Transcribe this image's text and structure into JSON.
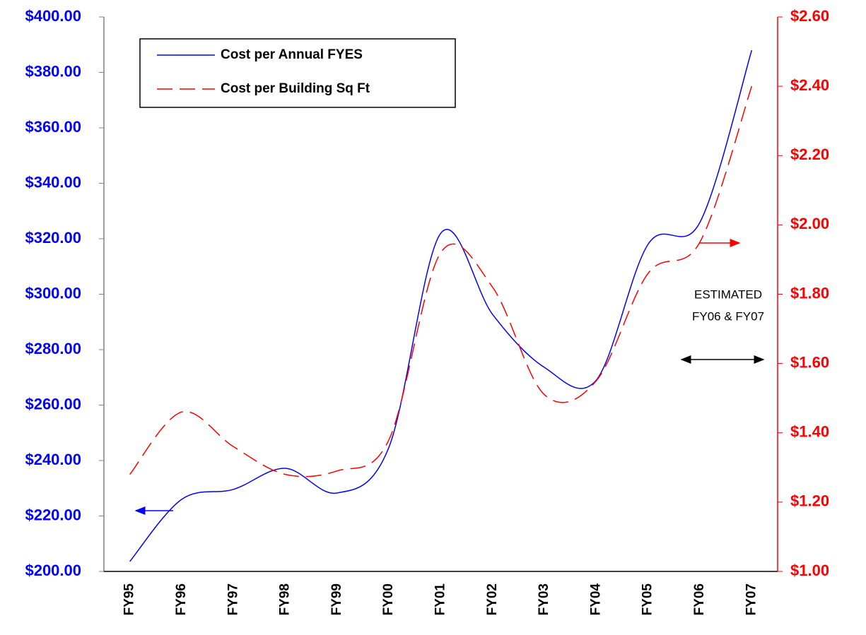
{
  "chart_data": {
    "type": "line",
    "categories": [
      "FY95",
      "FY96",
      "FY97",
      "FY98",
      "FY99",
      "FY00",
      "FY01",
      "FY02",
      "FY03",
      "FY04",
      "FY05",
      "FY06",
      "FY07"
    ],
    "series": [
      {
        "name": "Cost per Annual FYES",
        "color": "#0000ff",
        "axis": "y",
        "values": [
          203.6,
          226,
          229.6,
          237.2,
          228.3,
          244.8,
          322,
          292.7,
          273.6,
          269,
          318,
          325.9,
          388
        ]
      },
      {
        "name": "Cost per Building Sq Ft",
        "color": "#ff0000",
        "axis": "y2",
        "values": [
          1.28,
          1.46,
          1.36,
          1.28,
          1.29,
          1.38,
          1.92,
          1.82,
          1.51,
          1.55,
          1.86,
          1.95,
          2.4
        ]
      }
    ],
    "ylim": [
      200,
      400
    ],
    "yticks": [
      {
        "value": 200,
        "label": "$200.00"
      },
      {
        "value": 220,
        "label": "$220.00"
      },
      {
        "value": 240,
        "label": "$240.00"
      },
      {
        "value": 260,
        "label": "$260.00"
      },
      {
        "value": 280,
        "label": "$280.00"
      },
      {
        "value": 300,
        "label": "$300.00"
      },
      {
        "value": 320,
        "label": "$320.00"
      },
      {
        "value": 340,
        "label": "$340.00"
      },
      {
        "value": 360,
        "label": "$360.00"
      },
      {
        "value": 380,
        "label": "$380.00"
      },
      {
        "value": 400,
        "label": "$400.00"
      }
    ],
    "y2lim": [
      1,
      2.6
    ],
    "y2ticks": [
      {
        "value": 1,
        "label": "$1.00"
      },
      {
        "value": 1.2,
        "label": "$1.20"
      },
      {
        "value": 1.4,
        "label": "$1.40"
      },
      {
        "value": 1.6,
        "label": "$1.60"
      },
      {
        "value": 1.8,
        "label": "$1.80"
      },
      {
        "value": 2,
        "label": "$2.00"
      },
      {
        "value": 2.2,
        "label": "$2.20"
      },
      {
        "value": 2.4,
        "label": "$2.40"
      },
      {
        "value": 2.6,
        "label": "$2.60"
      }
    ],
    "annotation": [
      "ESTIMATED",
      "FY06 & FY07"
    ],
    "legend": "upper left",
    "grid": false
  }
}
